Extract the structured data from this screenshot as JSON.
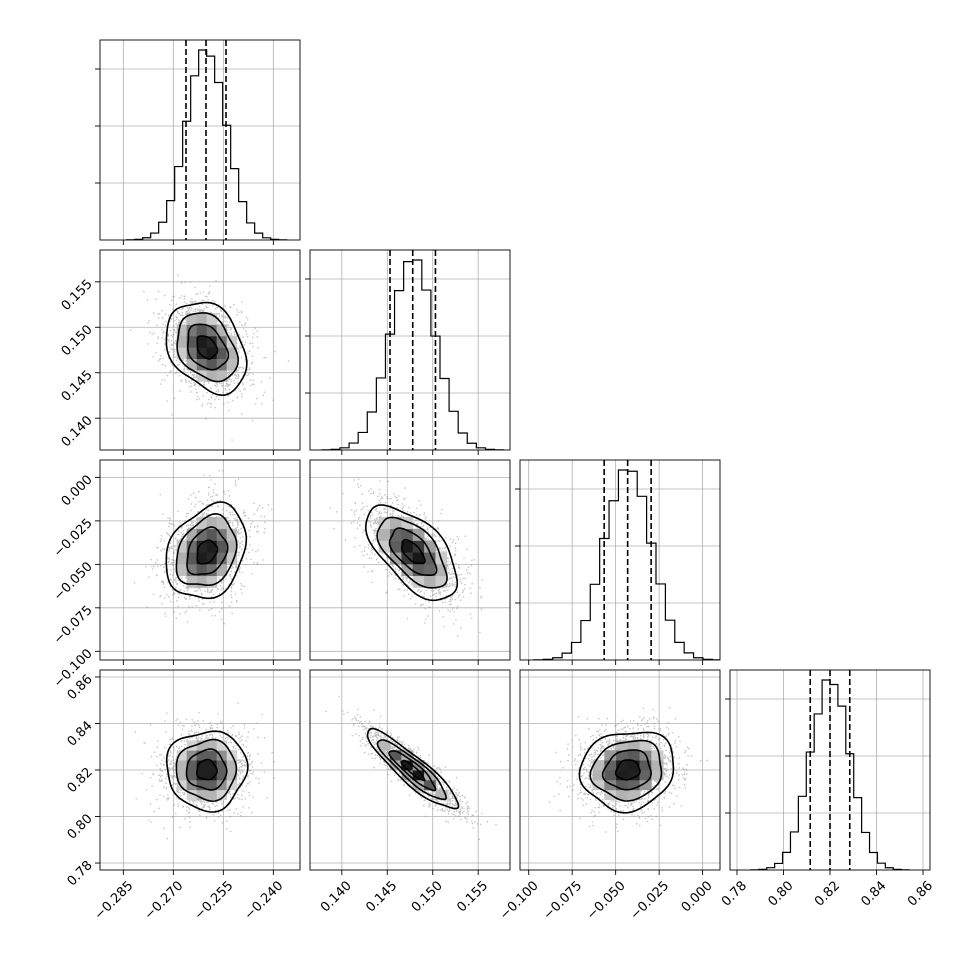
{
  "chart_data": {
    "type": "corner",
    "title": "",
    "parameters": [
      {
        "name": "",
        "center": -0.26,
        "sigma": 0.006,
        "range": [
          -0.292,
          -0.232
        ],
        "ticks": [
          -0.285,
          -0.27,
          -0.255,
          -0.24
        ],
        "tick_labels": [
          "−0.285",
          "−0.270",
          "−0.255",
          "−0.240"
        ],
        "quantiles": [
          -0.2662,
          -0.2602,
          -0.2542
        ]
      },
      {
        "name": "",
        "center": 0.1478,
        "sigma": 0.0025,
        "range": [
          0.1365,
          0.1585
        ],
        "ticks": [
          0.14,
          0.145,
          0.15,
          0.155
        ],
        "tick_labels": [
          "0.140",
          "0.145",
          "0.150",
          "0.155"
        ],
        "quantiles": [
          0.1453,
          0.1478,
          0.1503
        ]
      },
      {
        "name": "",
        "center": -0.043,
        "sigma": 0.0135,
        "range": [
          -0.105,
          0.01
        ],
        "ticks": [
          -0.1,
          -0.075,
          -0.05,
          -0.025,
          0.0
        ],
        "tick_labels": [
          "−0.100",
          "−0.075",
          "−0.050",
          "−0.025",
          "0.000"
        ],
        "quantiles": [
          -0.0566,
          -0.0431,
          -0.0296
        ]
      },
      {
        "name": "",
        "center": 0.82,
        "sigma": 0.0085,
        "range": [
          0.777,
          0.863
        ],
        "ticks": [
          0.78,
          0.8,
          0.82,
          0.84,
          0.86
        ],
        "tick_labels": [
          "0.78",
          "0.80",
          "0.82",
          "0.84",
          "0.86"
        ],
        "quantiles": [
          0.8115,
          0.82,
          0.8285
        ]
      }
    ],
    "correlations": [
      {
        "pair": [
          0,
          1
        ],
        "rho": -0.3
      },
      {
        "pair": [
          0,
          2
        ],
        "rho": 0.25
      },
      {
        "pair": [
          0,
          3
        ],
        "rho": 0.0
      },
      {
        "pair": [
          1,
          2
        ],
        "rho": -0.6
      },
      {
        "pair": [
          1,
          3
        ],
        "rho": -0.9
      },
      {
        "pair": [
          2,
          3
        ],
        "rho": 0.1
      }
    ],
    "histogram_bins": 20,
    "contour_levels_sigma": [
      0.5,
      1.0,
      1.5,
      2.0
    ],
    "grid": true,
    "quantile_style": "dashed",
    "colors": {
      "line": "#000000",
      "grid": "#b0b0b0",
      "density": "#000000",
      "points": "#808080"
    }
  }
}
